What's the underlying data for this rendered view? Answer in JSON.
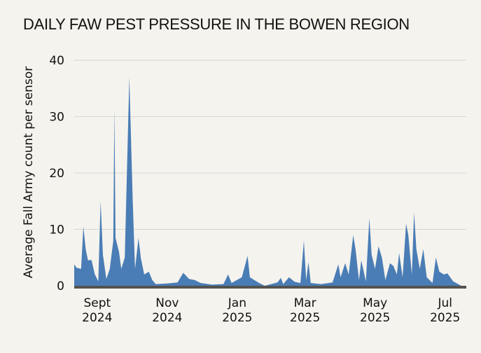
{
  "chart_data": {
    "type": "area",
    "title": "DAILY FAW PEST PRESSURE IN THE BOWEN REGION",
    "xlabel": "",
    "ylabel": "Average Fall Army count per sensor",
    "ylim": [
      0,
      40
    ],
    "yticks": [
      0,
      10,
      20,
      30,
      40
    ],
    "grid": true,
    "start_date": "2024-08-12",
    "end_date": "2025-07-15",
    "x_ticks": [
      {
        "date": "2024-09-01",
        "line1": "Sept",
        "line2": "2024"
      },
      {
        "date": "2024-11-01",
        "line1": "Nov",
        "line2": "2024"
      },
      {
        "date": "2025-01-01",
        "line1": "Jan",
        "line2": "2025"
      },
      {
        "date": "2025-03-01",
        "line1": "Mar",
        "line2": "2025"
      },
      {
        "date": "2025-05-01",
        "line1": "May",
        "line2": "2025"
      },
      {
        "date": "2025-07-01",
        "line1": "Jul",
        "line2": "2025"
      }
    ],
    "fill_color": "#4a7db5",
    "axis_color": "#555350",
    "grid_color": "#d8d6d2",
    "series": [
      {
        "name": "Average Fall Army count per sensor",
        "key_points": [
          {
            "date": "2024-08-12",
            "value": 3.8
          },
          {
            "date": "2024-08-14",
            "value": 3.2
          },
          {
            "date": "2024-08-18",
            "value": 3.0
          },
          {
            "date": "2024-08-20",
            "value": 10.5
          },
          {
            "date": "2024-08-22",
            "value": 6.5
          },
          {
            "date": "2024-08-24",
            "value": 4.5
          },
          {
            "date": "2024-08-27",
            "value": 4.6
          },
          {
            "date": "2024-08-30",
            "value": 2.0
          },
          {
            "date": "2024-09-02",
            "value": 0.8
          },
          {
            "date": "2024-09-04",
            "value": 15.0
          },
          {
            "date": "2024-09-06",
            "value": 5.5
          },
          {
            "date": "2024-09-09",
            "value": 1.2
          },
          {
            "date": "2024-09-12",
            "value": 3.0
          },
          {
            "date": "2024-09-15",
            "value": 8.0
          },
          {
            "date": "2024-09-16",
            "value": 31.5
          },
          {
            "date": "2024-09-17",
            "value": 8.5
          },
          {
            "date": "2024-09-20",
            "value": 6.0
          },
          {
            "date": "2024-09-22",
            "value": 3.0
          },
          {
            "date": "2024-09-25",
            "value": 5.0
          },
          {
            "date": "2024-09-29",
            "value": 37.0
          },
          {
            "date": "2024-10-02",
            "value": 15.0
          },
          {
            "date": "2024-10-04",
            "value": 3.0
          },
          {
            "date": "2024-10-07",
            "value": 8.5
          },
          {
            "date": "2024-10-09",
            "value": 5.0
          },
          {
            "date": "2024-10-12",
            "value": 2.0
          },
          {
            "date": "2024-10-16",
            "value": 2.5
          },
          {
            "date": "2024-10-19",
            "value": 1.0
          },
          {
            "date": "2024-10-22",
            "value": 0.3
          },
          {
            "date": "2024-11-01",
            "value": 0.4
          },
          {
            "date": "2024-11-10",
            "value": 0.6
          },
          {
            "date": "2024-11-15",
            "value": 2.3
          },
          {
            "date": "2024-11-20",
            "value": 1.2
          },
          {
            "date": "2024-11-25",
            "value": 1.0
          },
          {
            "date": "2024-11-30",
            "value": 0.5
          },
          {
            "date": "2024-12-10",
            "value": 0.2
          },
          {
            "date": "2024-12-20",
            "value": 0.3
          },
          {
            "date": "2024-12-24",
            "value": 2.0
          },
          {
            "date": "2024-12-27",
            "value": 0.5
          },
          {
            "date": "2025-01-05",
            "value": 1.5
          },
          {
            "date": "2025-01-10",
            "value": 5.3
          },
          {
            "date": "2025-01-12",
            "value": 1.5
          },
          {
            "date": "2025-01-20",
            "value": 0.5
          },
          {
            "date": "2025-01-25",
            "value": 0.0
          },
          {
            "date": "2025-02-05",
            "value": 0.6
          },
          {
            "date": "2025-02-08",
            "value": 1.4
          },
          {
            "date": "2025-02-10",
            "value": 0.3
          },
          {
            "date": "2025-02-15",
            "value": 1.5
          },
          {
            "date": "2025-02-20",
            "value": 0.7
          },
          {
            "date": "2025-02-25",
            "value": 0.5
          },
          {
            "date": "2025-02-28",
            "value": 8.0
          },
          {
            "date": "2025-03-02",
            "value": 1.0
          },
          {
            "date": "2025-03-04",
            "value": 4.2
          },
          {
            "date": "2025-03-06",
            "value": 0.5
          },
          {
            "date": "2025-03-15",
            "value": 0.3
          },
          {
            "date": "2025-03-25",
            "value": 0.6
          },
          {
            "date": "2025-03-30",
            "value": 3.8
          },
          {
            "date": "2025-04-01",
            "value": 1.5
          },
          {
            "date": "2025-04-05",
            "value": 4.0
          },
          {
            "date": "2025-04-08",
            "value": 2.0
          },
          {
            "date": "2025-04-12",
            "value": 9.0
          },
          {
            "date": "2025-04-14",
            "value": 6.5
          },
          {
            "date": "2025-04-17",
            "value": 1.0
          },
          {
            "date": "2025-04-19",
            "value": 4.5
          },
          {
            "date": "2025-04-23",
            "value": 0.8
          },
          {
            "date": "2025-04-26",
            "value": 12.0
          },
          {
            "date": "2025-04-28",
            "value": 5.5
          },
          {
            "date": "2025-05-01",
            "value": 3.0
          },
          {
            "date": "2025-05-04",
            "value": 7.0
          },
          {
            "date": "2025-05-07",
            "value": 5.0
          },
          {
            "date": "2025-05-10",
            "value": 1.0
          },
          {
            "date": "2025-05-14",
            "value": 4.0
          },
          {
            "date": "2025-05-17",
            "value": 3.5
          },
          {
            "date": "2025-05-20",
            "value": 2.0
          },
          {
            "date": "2025-05-22",
            "value": 5.8
          },
          {
            "date": "2025-05-25",
            "value": 1.5
          },
          {
            "date": "2025-05-28",
            "value": 11.0
          },
          {
            "date": "2025-05-30",
            "value": 9.0
          },
          {
            "date": "2025-06-02",
            "value": 2.0
          },
          {
            "date": "2025-06-04",
            "value": 13.0
          },
          {
            "date": "2025-06-06",
            "value": 6.5
          },
          {
            "date": "2025-06-09",
            "value": 3.0
          },
          {
            "date": "2025-06-12",
            "value": 6.5
          },
          {
            "date": "2025-06-15",
            "value": 1.5
          },
          {
            "date": "2025-06-20",
            "value": 0.5
          },
          {
            "date": "2025-06-23",
            "value": 5.0
          },
          {
            "date": "2025-06-26",
            "value": 2.5
          },
          {
            "date": "2025-06-30",
            "value": 2.0
          },
          {
            "date": "2025-07-03",
            "value": 2.2
          },
          {
            "date": "2025-07-08",
            "value": 0.8
          },
          {
            "date": "2025-07-15",
            "value": 0.0
          }
        ]
      }
    ]
  }
}
